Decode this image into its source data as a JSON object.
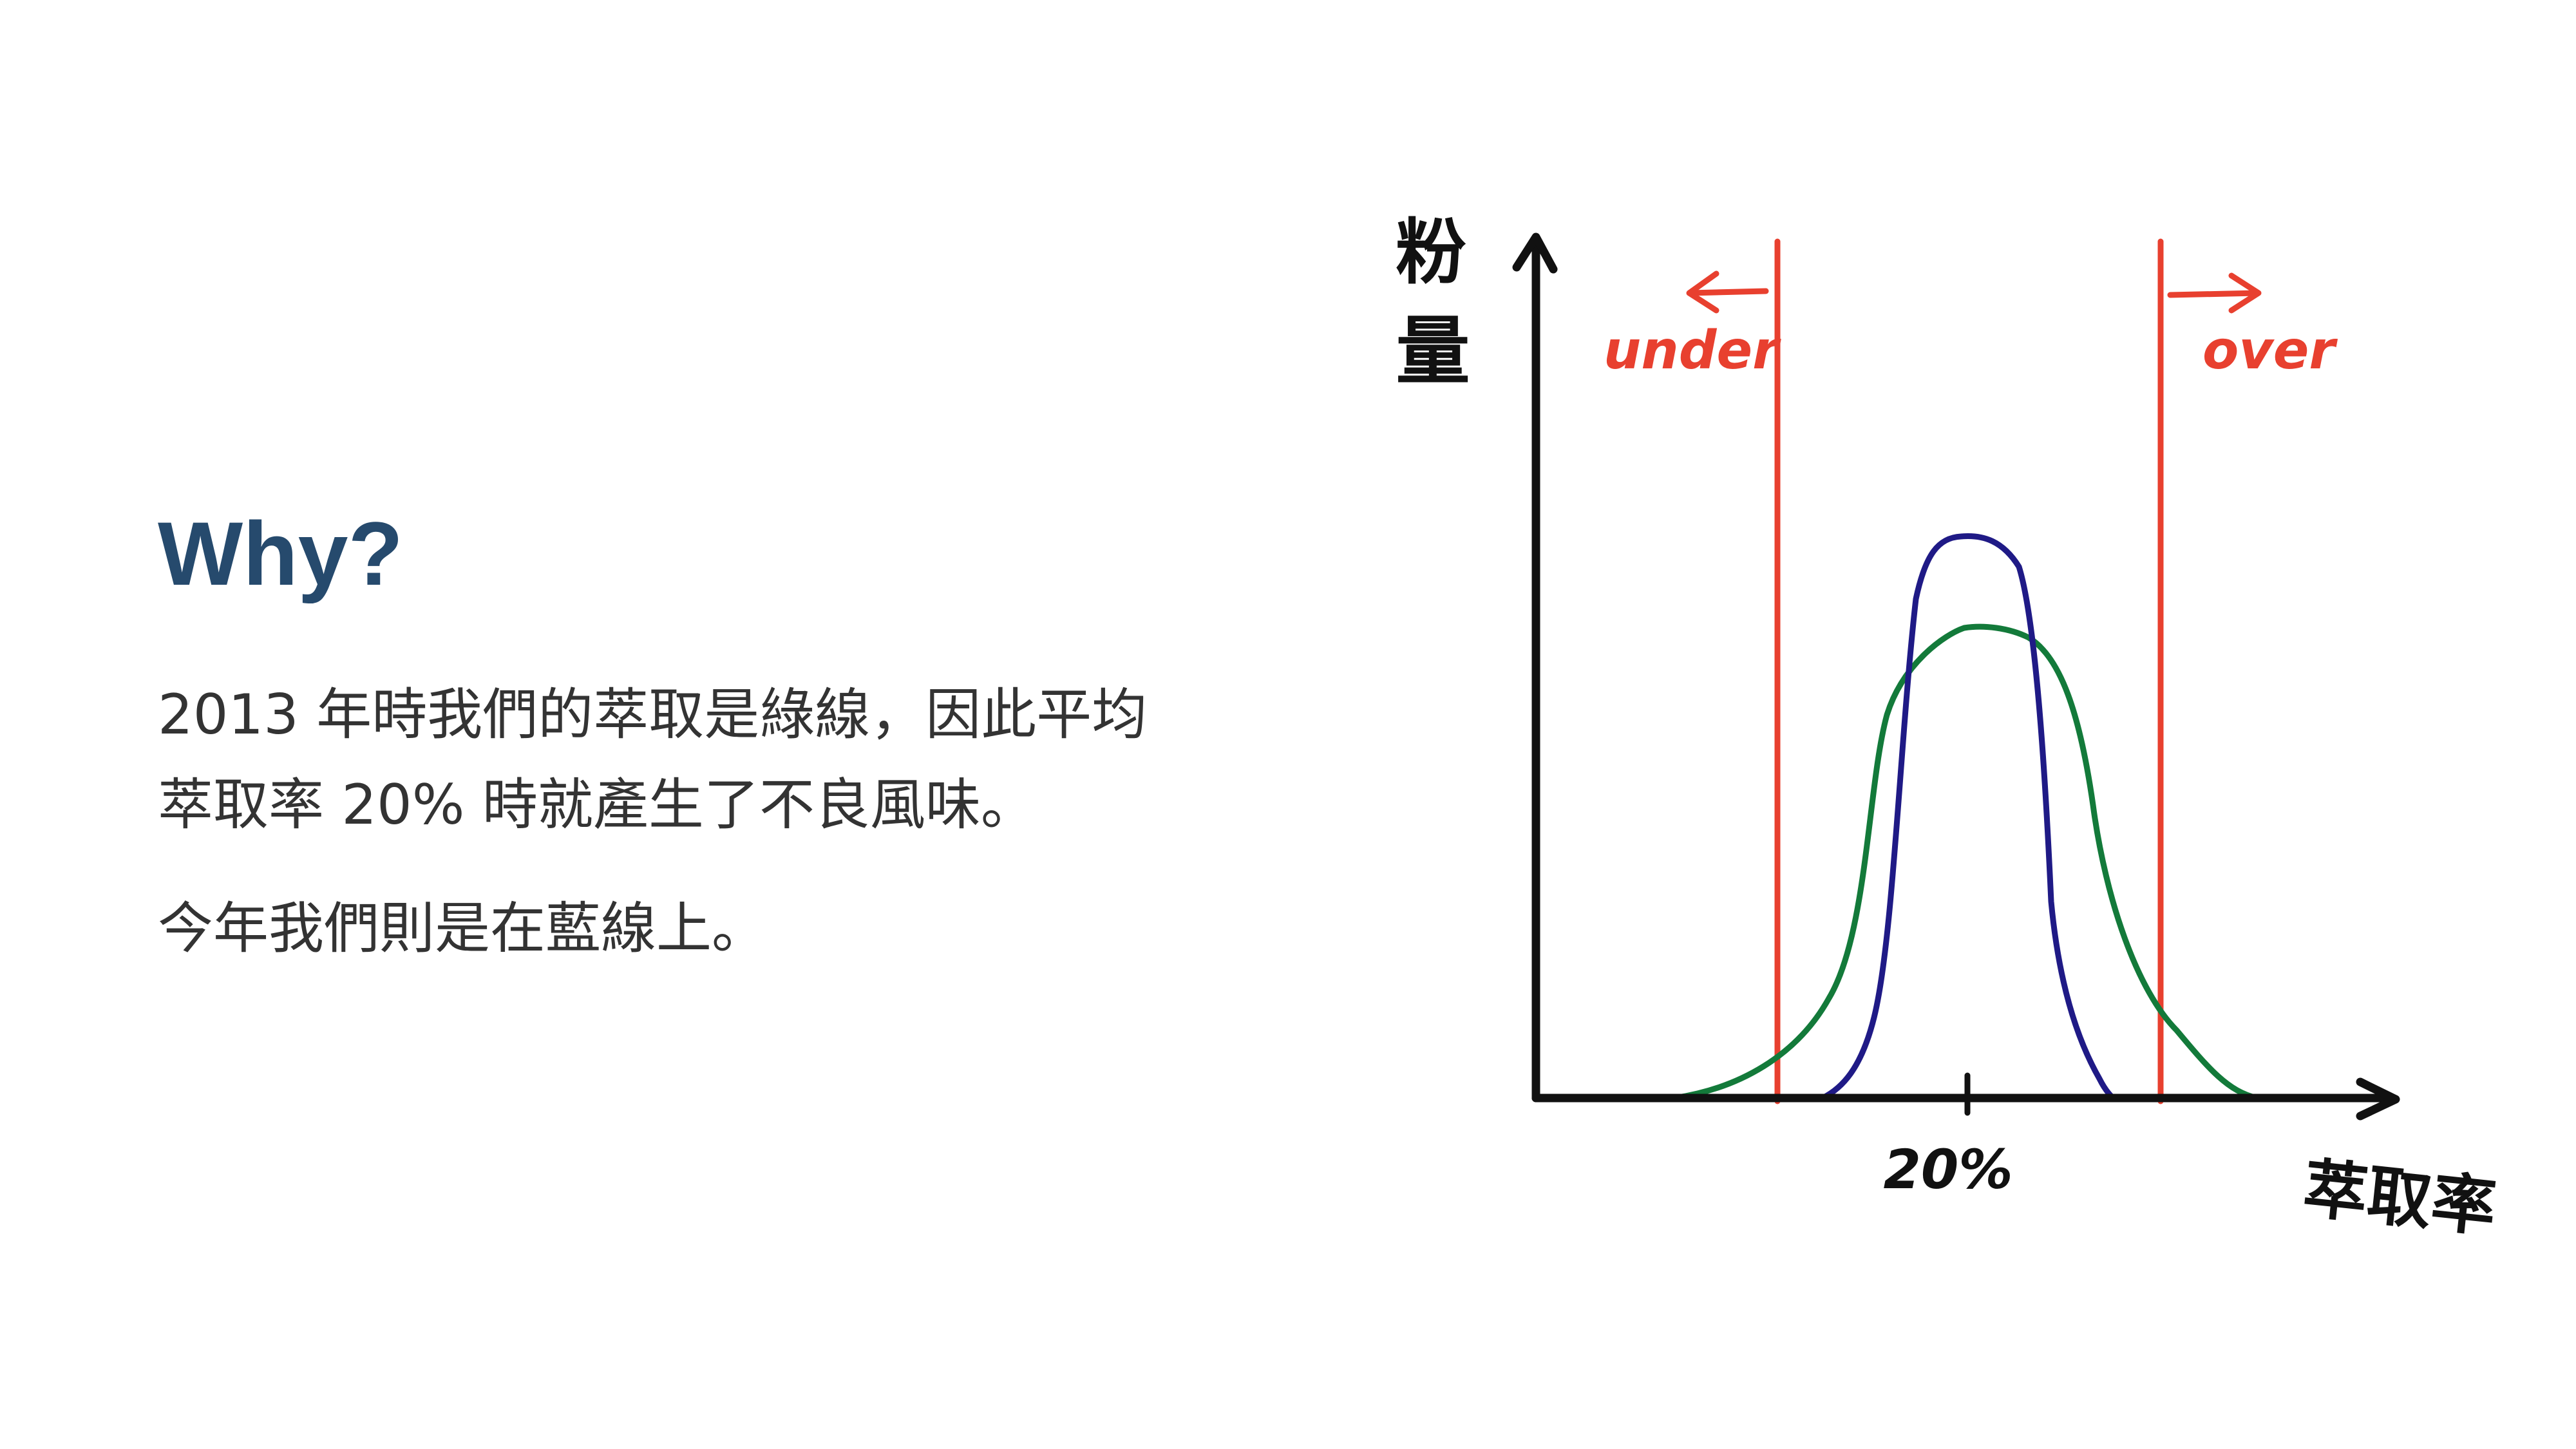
{
  "slide": {
    "title": "Why?",
    "paragraphs": [
      "2013 年時我們的萃取是綠線，因此平均萃取率 20% 時就產生了不良風味。",
      "今年我們則是在藍線上。"
    ]
  },
  "diagram": {
    "y_axis_label_top": "粉",
    "y_axis_label_bottom": "量",
    "x_axis_label": "萃取率",
    "x_tick_label": "20%",
    "under_label": "under",
    "over_label": "over",
    "colors": {
      "axis": "#111111",
      "bounds": "#e8402f",
      "green_curve": "#137a3a",
      "blue_curve": "#1f1a86",
      "title": "#264a6d",
      "body_text": "#333333"
    }
  }
}
